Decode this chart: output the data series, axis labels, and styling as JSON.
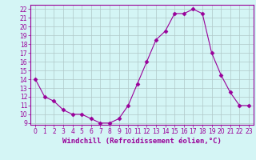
{
  "x": [
    0,
    1,
    2,
    3,
    4,
    5,
    6,
    7,
    8,
    9,
    10,
    11,
    12,
    13,
    14,
    15,
    16,
    17,
    18,
    19,
    20,
    21,
    22,
    23
  ],
  "y": [
    14,
    12,
    11.5,
    10.5,
    10,
    10,
    9.5,
    9,
    9,
    9.5,
    11,
    13.5,
    16,
    18.5,
    19.5,
    21.5,
    21.5,
    22,
    21.5,
    17,
    14.5,
    12.5,
    11,
    11
  ],
  "line_color": "#990099",
  "marker": "D",
  "markersize": 2.5,
  "linewidth": 0.8,
  "bg_color": "#d4f5f5",
  "grid_color": "#b0c8c8",
  "xlabel": "Windchill (Refroidissement éolien,°C)",
  "ylabel": "",
  "title": "",
  "xlim": [
    -0.5,
    23.5
  ],
  "ylim": [
    8.8,
    22.5
  ],
  "yticks": [
    9,
    10,
    11,
    12,
    13,
    14,
    15,
    16,
    17,
    18,
    19,
    20,
    21,
    22
  ],
  "xticks": [
    0,
    1,
    2,
    3,
    4,
    5,
    6,
    7,
    8,
    9,
    10,
    11,
    12,
    13,
    14,
    15,
    16,
    17,
    18,
    19,
    20,
    21,
    22,
    23
  ],
  "xlabel_fontsize": 6.5,
  "tick_fontsize": 5.5,
  "xlabel_color": "#990099",
  "tick_color": "#990099",
  "axis_color": "#990099"
}
